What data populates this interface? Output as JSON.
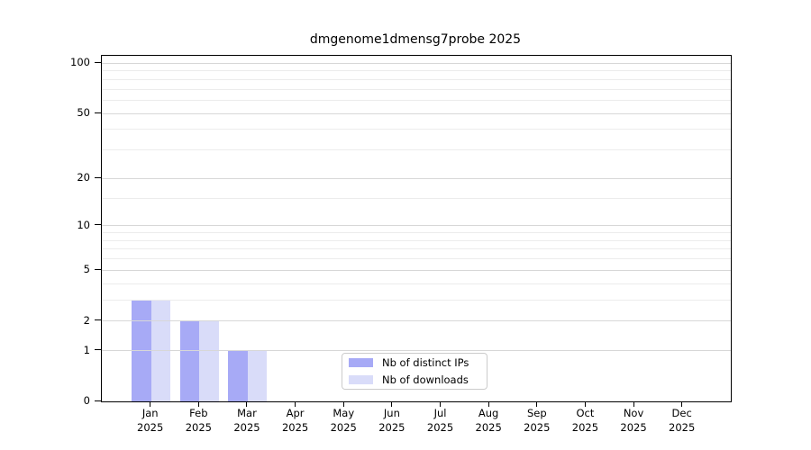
{
  "chart_data": {
    "type": "bar",
    "title": "dmgenome1dmensg7probe 2025",
    "categories": [
      "Jan",
      "Feb",
      "Mar",
      "Apr",
      "May",
      "Jun",
      "Jul",
      "Aug",
      "Sep",
      "Oct",
      "Nov",
      "Dec"
    ],
    "category_year": "2025",
    "series": [
      {
        "name": "Nb of distinct IPs",
        "color": "#a7aaf6",
        "values": [
          3,
          2,
          1,
          0,
          0,
          0,
          0,
          0,
          0,
          0,
          0,
          0
        ]
      },
      {
        "name": "Nb of downloads",
        "color": "#d9dcf9",
        "values": [
          3,
          2,
          1,
          0,
          0,
          0,
          0,
          0,
          0,
          0,
          0,
          0
        ]
      }
    ],
    "yscale": "log1p",
    "ylim": [
      0,
      111
    ],
    "yticks": [
      0,
      1,
      2,
      5,
      10,
      20,
      50,
      100
    ],
    "yticks_minor": [
      3,
      4,
      6,
      7,
      8,
      9,
      15,
      30,
      40,
      60,
      70,
      80,
      90
    ],
    "grid": "horizontal",
    "legend_position": "bottom-center-inside",
    "colors": {
      "major_grid": "#d7d7d7",
      "minor_grid": "#ececec",
      "axis": "#000000",
      "text": "#000000",
      "background": "#ffffff"
    }
  }
}
